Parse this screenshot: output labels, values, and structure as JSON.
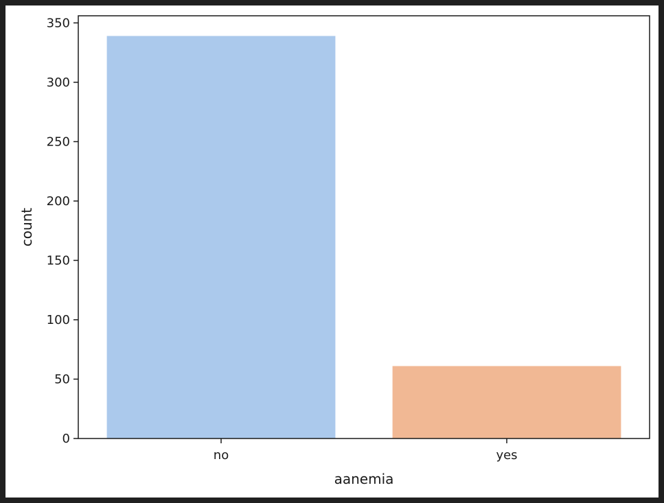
{
  "chart_data": {
    "type": "bar",
    "categories": [
      "no",
      "yes"
    ],
    "values": [
      339,
      61
    ],
    "colors": [
      "#abc9ec",
      "#f1b894"
    ],
    "xlabel": "aanemia",
    "ylabel": "count",
    "ylim": [
      0,
      356
    ],
    "yticks": [
      0,
      50,
      100,
      150,
      200,
      250,
      300,
      350
    ],
    "grid": false
  }
}
